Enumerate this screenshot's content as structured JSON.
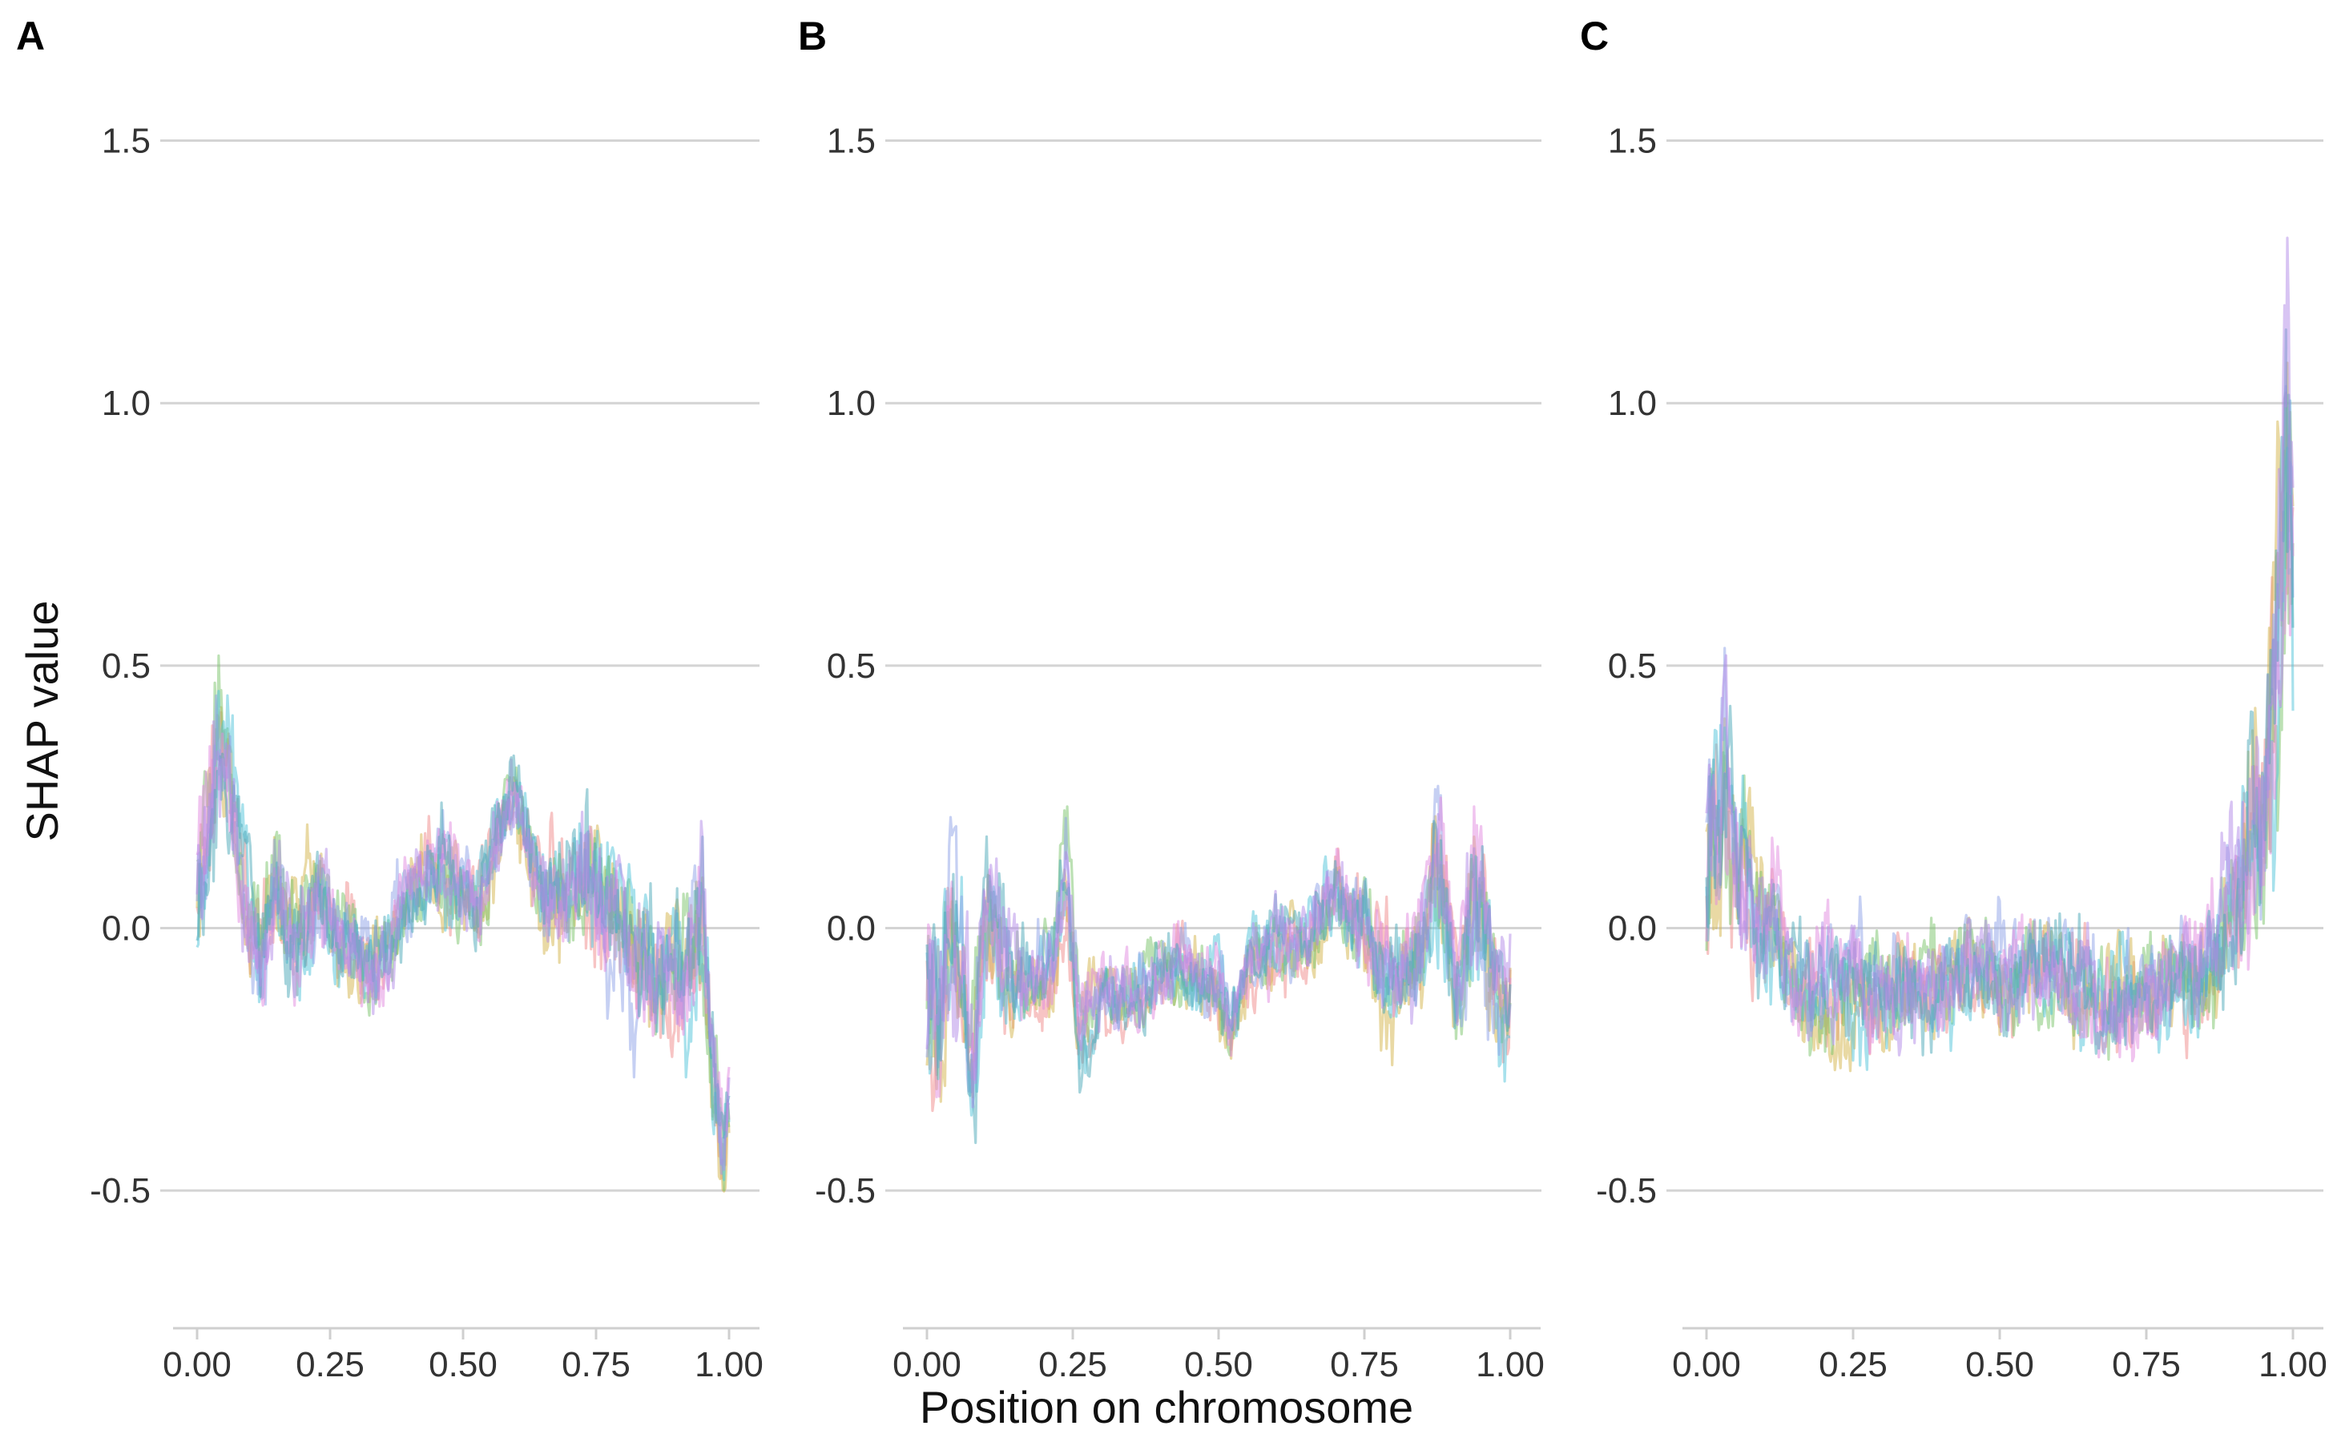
{
  "chart_data": {
    "type": "line",
    "ylabel": "SHAP value",
    "xlabel": "Position on chromosome",
    "y_ticks": [
      "1.5",
      "1.0",
      "0.5",
      "0.0",
      "-0.5"
    ],
    "x_ticks": [
      "0.00",
      "0.25",
      "0.50",
      "0.75",
      "1.00"
    ],
    "xlim": [
      0,
      1
    ],
    "ylim": [
      -0.75,
      1.6
    ],
    "grid": "horizontal",
    "legend": "none",
    "series_colors": [
      "#f08a8a",
      "#d4b44a",
      "#7ac36a",
      "#4fc3d9",
      "#8da2e8",
      "#e28ae0",
      "#4aa8b8",
      "#b28ae8"
    ],
    "panels": [
      {
        "label": "A",
        "envelope": {
          "x": [
            0.0,
            0.02,
            0.04,
            0.06,
            0.08,
            0.1,
            0.12,
            0.15,
            0.18,
            0.2,
            0.23,
            0.26,
            0.3,
            0.33,
            0.36,
            0.4,
            0.43,
            0.46,
            0.5,
            0.53,
            0.55,
            0.58,
            0.6,
            0.63,
            0.66,
            0.7,
            0.73,
            0.76,
            0.8,
            0.83,
            0.86,
            0.9,
            0.93,
            0.95,
            0.97,
            0.99,
            1.0
          ],
          "y": [
            0.05,
            0.15,
            0.35,
            0.3,
            0.1,
            0.0,
            -0.05,
            0.05,
            -0.05,
            0.0,
            0.05,
            -0.05,
            -0.05,
            -0.1,
            -0.05,
            0.05,
            0.08,
            0.1,
            0.05,
            0.0,
            0.1,
            0.2,
            0.25,
            0.1,
            0.05,
            0.05,
            0.1,
            0.05,
            -0.05,
            -0.1,
            -0.15,
            -0.1,
            -0.1,
            -0.05,
            -0.3,
            -0.45,
            -0.35
          ],
          "band": [
            0.18,
            0.2,
            0.2,
            0.18,
            0.15,
            0.15,
            0.15,
            0.14,
            0.14,
            0.14,
            0.14,
            0.14,
            0.12,
            0.12,
            0.12,
            0.12,
            0.12,
            0.12,
            0.12,
            0.12,
            0.12,
            0.1,
            0.1,
            0.12,
            0.14,
            0.15,
            0.18,
            0.18,
            0.18,
            0.18,
            0.18,
            0.2,
            0.2,
            0.2,
            0.15,
            0.15,
            0.12
          ]
        }
      },
      {
        "label": "B",
        "envelope": {
          "x": [
            0.0,
            0.02,
            0.04,
            0.06,
            0.08,
            0.1,
            0.12,
            0.15,
            0.18,
            0.2,
            0.22,
            0.24,
            0.26,
            0.3,
            0.35,
            0.4,
            0.45,
            0.5,
            0.52,
            0.55,
            0.6,
            0.65,
            0.7,
            0.75,
            0.8,
            0.85,
            0.87,
            0.89,
            0.91,
            0.93,
            0.95,
            0.97,
            0.99,
            1.0
          ],
          "y": [
            -0.05,
            -0.1,
            0.1,
            0.0,
            -0.2,
            0.1,
            0.0,
            -0.05,
            -0.05,
            -0.05,
            0.0,
            0.15,
            -0.15,
            -0.1,
            -0.1,
            -0.05,
            -0.05,
            -0.08,
            -0.15,
            -0.05,
            0.0,
            0.0,
            0.1,
            0.05,
            -0.05,
            0.0,
            0.2,
            0.1,
            -0.1,
            0.1,
            0.1,
            -0.05,
            -0.1,
            -0.05
          ],
          "band": [
            0.22,
            0.25,
            0.25,
            0.2,
            0.2,
            0.18,
            0.18,
            0.14,
            0.12,
            0.12,
            0.12,
            0.14,
            0.12,
            0.1,
            0.1,
            0.1,
            0.1,
            0.1,
            0.1,
            0.1,
            0.1,
            0.1,
            0.12,
            0.14,
            0.14,
            0.15,
            0.2,
            0.2,
            0.15,
            0.2,
            0.2,
            0.15,
            0.18,
            0.15
          ]
        }
      },
      {
        "label": "C",
        "envelope": {
          "x": [
            0.0,
            0.01,
            0.02,
            0.03,
            0.05,
            0.08,
            0.1,
            0.13,
            0.16,
            0.18,
            0.2,
            0.25,
            0.3,
            0.35,
            0.4,
            0.45,
            0.5,
            0.55,
            0.6,
            0.65,
            0.7,
            0.75,
            0.8,
            0.83,
            0.86,
            0.88,
            0.9,
            0.92,
            0.94,
            0.95,
            0.96,
            0.97,
            0.98,
            0.99,
            1.0
          ],
          "y": [
            0.1,
            0.2,
            0.15,
            0.3,
            0.15,
            0.05,
            0.0,
            -0.05,
            -0.1,
            -0.12,
            -0.1,
            -0.1,
            -0.12,
            -0.1,
            -0.1,
            -0.08,
            -0.1,
            -0.1,
            -0.08,
            -0.1,
            -0.12,
            -0.1,
            -0.12,
            -0.1,
            -0.05,
            0.0,
            0.05,
            0.1,
            0.2,
            0.2,
            0.3,
            0.5,
            0.6,
            0.8,
            0.6
          ],
          "band": [
            0.25,
            0.3,
            0.3,
            0.3,
            0.25,
            0.2,
            0.18,
            0.16,
            0.15,
            0.15,
            0.15,
            0.15,
            0.15,
            0.15,
            0.14,
            0.14,
            0.14,
            0.14,
            0.14,
            0.15,
            0.15,
            0.15,
            0.15,
            0.15,
            0.18,
            0.2,
            0.25,
            0.3,
            0.3,
            0.3,
            0.4,
            0.45,
            0.5,
            0.5,
            0.4
          ]
        }
      }
    ]
  }
}
